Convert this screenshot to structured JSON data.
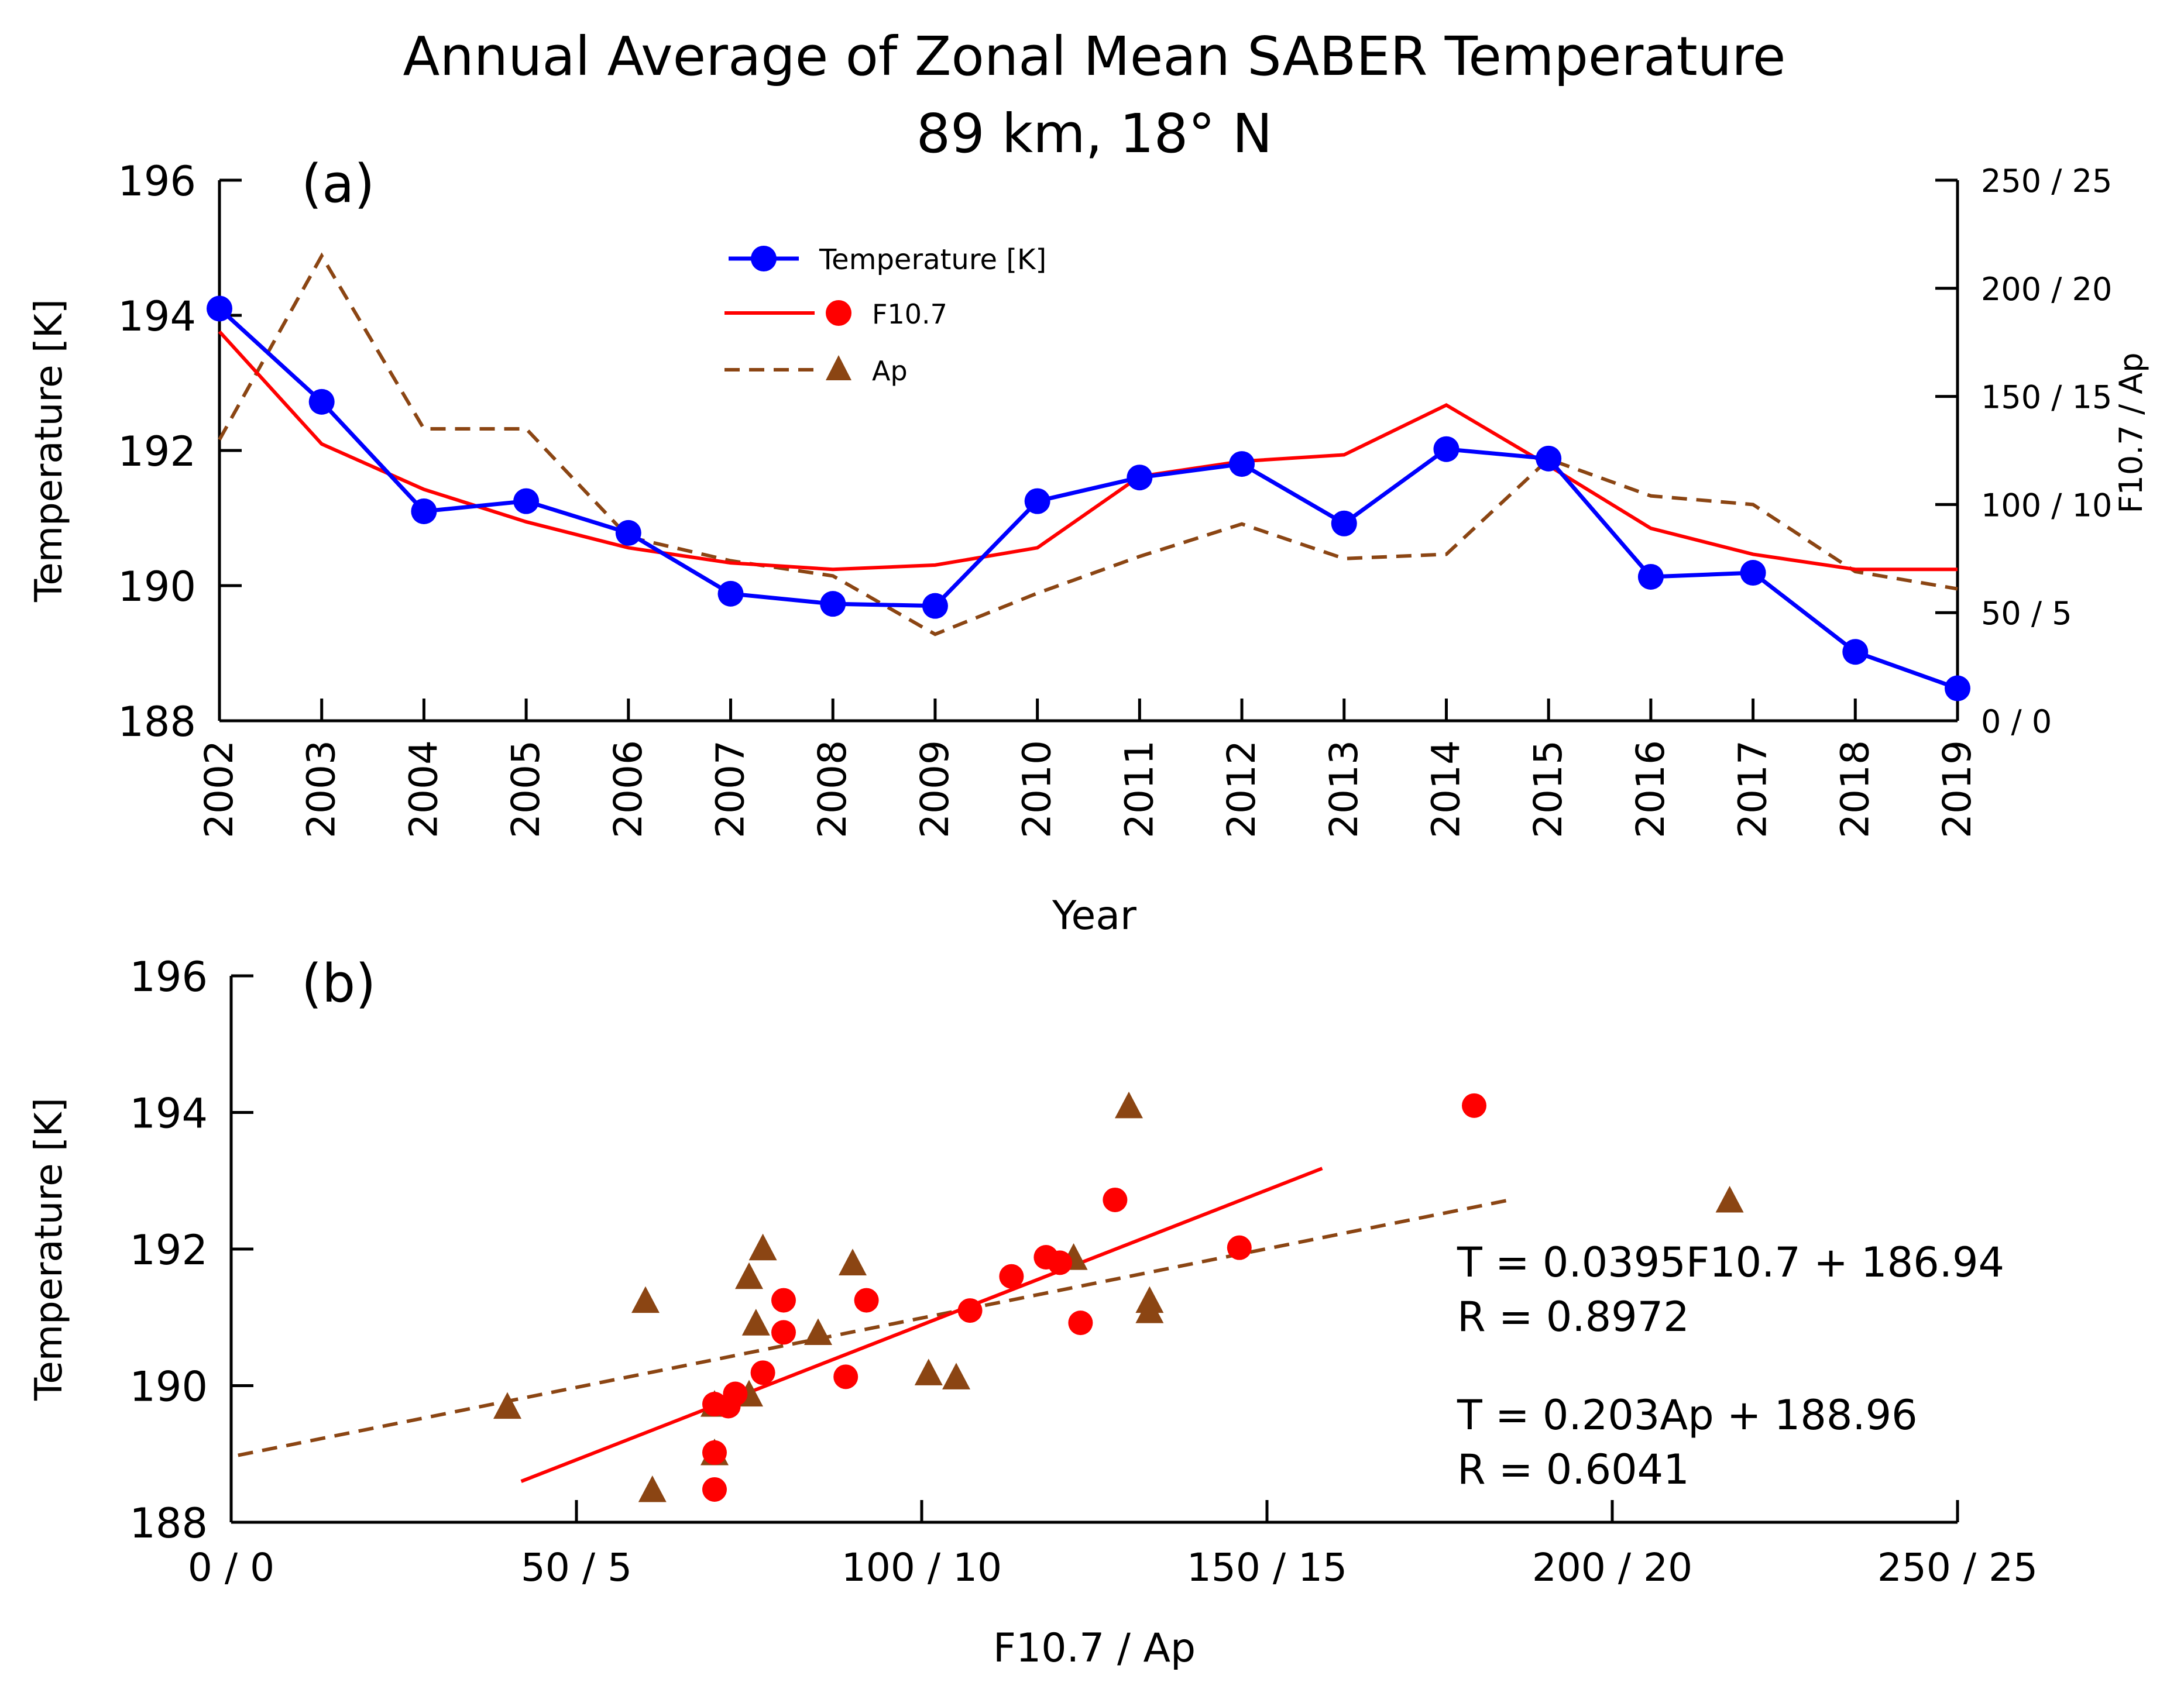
{
  "title": "Annual Average of Zonal Mean SABER Temperature",
  "subtitle": "89 km, 18° N",
  "colors": {
    "temperature": "#0000ff",
    "f107": "#ff0000",
    "ap": "#8b4513",
    "axis": "#000000"
  },
  "chart_data": [
    {
      "panel": "(a)",
      "type": "line",
      "xlabel": "Year",
      "ylabel": "Temperature [K]",
      "y2label": "F10.7 / Ap",
      "ylim": [
        188,
        196
      ],
      "yticks": [
        188,
        190,
        192,
        194,
        196
      ],
      "y2lim": [
        0,
        250
      ],
      "y2ticks": [
        0,
        50,
        100,
        150,
        200,
        250
      ],
      "y2ticklabels": [
        "0 / 0",
        "50 / 5",
        "100 / 10",
        "150 / 15",
        "200 / 20",
        "250 / 25"
      ],
      "legend_position": "top-center",
      "x": [
        2002,
        2003,
        2004,
        2005,
        2006,
        2007,
        2008,
        2009,
        2010,
        2011,
        2012,
        2013,
        2014,
        2015,
        2016,
        2017,
        2018,
        2019
      ],
      "xticklabels": [
        "2002",
        "2003",
        "2004",
        "2005",
        "2006",
        "2007",
        "2008",
        "2009",
        "2010",
        "2011",
        "2012",
        "2013",
        "2014",
        "2015",
        "2016",
        "2017",
        "2018",
        "2019"
      ],
      "series": [
        {
          "name": "Temperature [K]",
          "axis": "left",
          "style": "solid line with circle markers",
          "values": [
            194.1,
            192.72,
            191.1,
            191.25,
            190.78,
            189.88,
            189.73,
            189.7,
            191.25,
            191.6,
            191.8,
            190.92,
            192.02,
            191.88,
            190.13,
            190.19,
            189.02,
            188.48
          ]
        },
        {
          "name": "F10.7",
          "axis": "right",
          "style": "solid line",
          "values": [
            180,
            128,
            107,
            92,
            80,
            73,
            70,
            72,
            80,
            113,
            120,
            123,
            146,
            118,
            89,
            77,
            70,
            70
          ]
        },
        {
          "name": "Ap",
          "axis": "right",
          "style": "dashed line",
          "values": [
            13,
            21.5,
            13.5,
            13.5,
            8.5,
            7.4,
            6.7,
            4.0,
            5.9,
            7.6,
            9.1,
            7.5,
            7.7,
            12.1,
            10.4,
            10.0,
            6.9,
            6.1
          ]
        }
      ]
    },
    {
      "panel": "(b)",
      "type": "scatter",
      "xlabel": "F10.7 / Ap",
      "ylabel": "Temperature [K]",
      "xlim": [
        0,
        250
      ],
      "xticks": [
        0,
        50,
        100,
        150,
        200,
        250
      ],
      "xticklabels": [
        "0 / 0",
        "50 / 5",
        "100 / 10",
        "150 / 15",
        "200 / 20",
        "250 / 25"
      ],
      "ylim": [
        188,
        196
      ],
      "yticks": [
        188,
        190,
        192,
        194,
        196
      ],
      "series": [
        {
          "name": "F10.7",
          "marker": "circle",
          "x": [
            180,
            128,
            107,
            92,
            80,
            73,
            70,
            72,
            80,
            113,
            120,
            123,
            146,
            118,
            89,
            77,
            70,
            70
          ],
          "y": [
            194.1,
            192.72,
            191.1,
            191.25,
            190.78,
            189.88,
            189.73,
            189.7,
            191.25,
            191.6,
            191.8,
            190.92,
            192.02,
            191.88,
            190.13,
            190.19,
            189.02,
            188.48
          ]
        },
        {
          "name": "Ap",
          "marker": "triangle",
          "x": [
            130,
            217,
            133,
            60,
            85,
            75,
            105,
            40,
            76,
            90,
            77,
            133,
            122,
            75,
            101,
            70,
            61,
            70
          ],
          "y": [
            194.1,
            192.72,
            191.1,
            191.25,
            190.78,
            189.88,
            190.13,
            189.7,
            190.92,
            191.8,
            192.02,
            191.25,
            191.88,
            191.6,
            190.19,
            189.02,
            188.48,
            189.73
          ]
        }
      ],
      "fits": [
        {
          "name": "F10.7 fit",
          "style": "solid",
          "slope": 0.0395,
          "intercept": 186.94,
          "x_range": [
            42,
            158
          ],
          "equation": "T = 0.0395F10.7 + 186.94",
          "r_label": "R = 0.8972"
        },
        {
          "name": "Ap fit",
          "style": "dashed",
          "slope": 0.0203,
          "intercept": 188.96,
          "x_range": [
            1,
            185
          ],
          "equation": "T = 0.203Ap + 188.96",
          "r_label": "R = 0.6041"
        }
      ]
    }
  ]
}
